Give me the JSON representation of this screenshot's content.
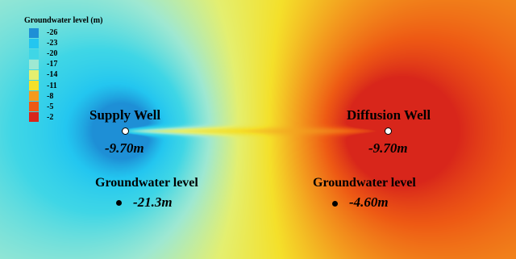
{
  "legend": {
    "title": "Groundwater level (m)",
    "items": [
      {
        "label": "-26",
        "color": "#1e8fd6"
      },
      {
        "label": "-23",
        "color": "#23c6f0"
      },
      {
        "label": "-20",
        "color": "#3fd6e6"
      },
      {
        "label": "-17",
        "color": "#9ee8d2"
      },
      {
        "label": "-14",
        "color": "#e4ef70"
      },
      {
        "label": "-11",
        "color": "#f4e02a"
      },
      {
        "label": "-8",
        "color": "#f39a1e"
      },
      {
        "label": "-5",
        "color": "#ee5a14"
      },
      {
        "label": "-2",
        "color": "#d8261b"
      }
    ]
  },
  "supply_well": {
    "name": "Supply Well",
    "level_text": "-9.70m",
    "groundwater_title": "Groundwater level",
    "groundwater_value": "-21.3m"
  },
  "diffusion_well": {
    "name": "Diffusion Well",
    "level_text": "-9.70m",
    "groundwater_title": "Groundwater level",
    "groundwater_value": "-4.60m"
  }
}
